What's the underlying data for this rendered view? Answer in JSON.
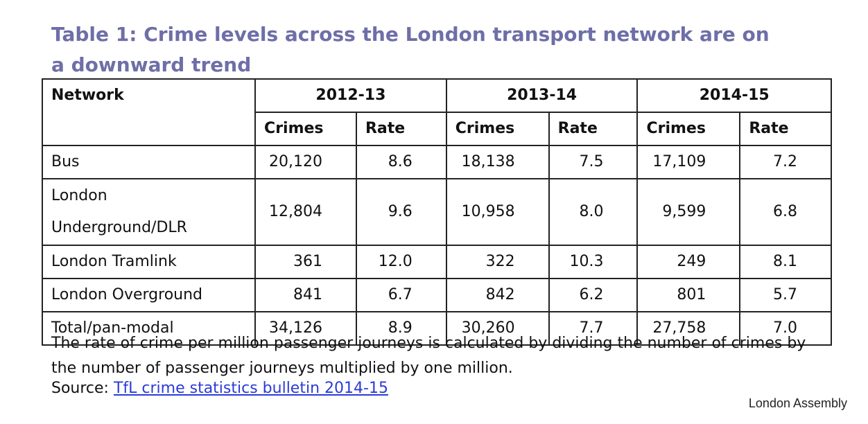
{
  "title": "Table 1: Crime levels across the London transport network are on a downward trend",
  "table": {
    "network_header": "Network",
    "years": [
      "2012-13",
      "2013-14",
      "2014-15"
    ],
    "subheaders": [
      "Crimes",
      "Rate",
      "Crimes",
      "Rate",
      "Crimes",
      "Rate"
    ],
    "rows": [
      {
        "network": "Bus",
        "values": [
          "20,120",
          "8.6",
          "18,138",
          "7.5",
          "17,109",
          "7.2"
        ]
      },
      {
        "network_line1": "London",
        "network_line2": "Underground/DLR",
        "values": [
          "12,804",
          "9.6",
          "10,958",
          "8.0",
          "9,599",
          "6.8"
        ]
      },
      {
        "network": "London Tramlink",
        "values": [
          "361",
          "12.0",
          "322",
          "10.3",
          "249",
          "8.1"
        ]
      },
      {
        "network": "London Overground",
        "values": [
          "841",
          "6.7",
          "842",
          "6.2",
          "801",
          "5.7"
        ]
      },
      {
        "network": "Total/pan-modal",
        "values": [
          "34,126",
          "8.9",
          "30,260",
          "7.7",
          "27,758",
          "7.0"
        ]
      }
    ]
  },
  "note": "The rate of crime per million passenger journeys is calculated by dividing the number of crimes by the number of passenger journeys multiplied by one million.",
  "source": {
    "label": "Source: ",
    "link_text": "TfL crime statistics bulletin 2014-15"
  },
  "credit": "London Assembly",
  "colors": {
    "title": "#6e6ea8",
    "link": "#2a3bd8",
    "border": "#222222"
  }
}
